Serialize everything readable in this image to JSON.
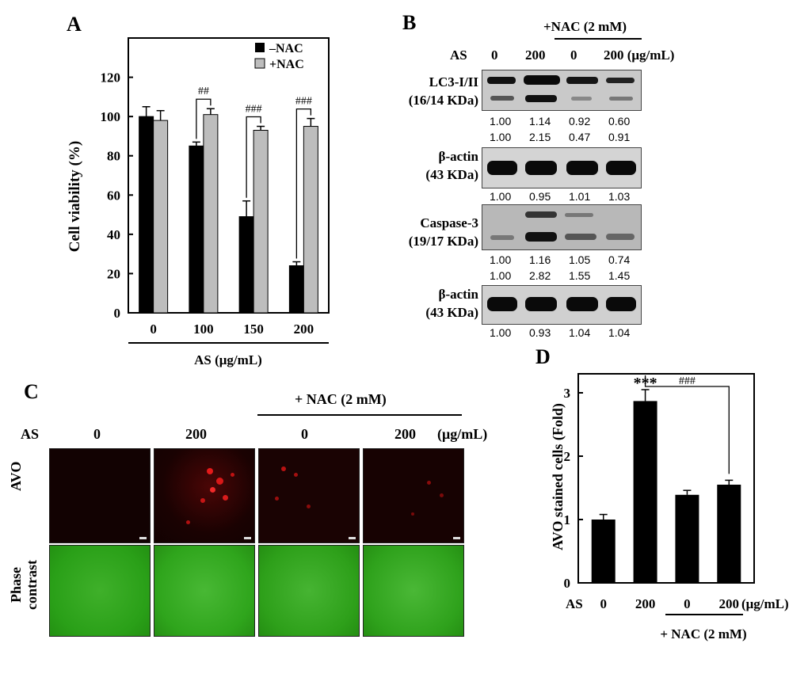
{
  "panel_a": {
    "letter": "A",
    "legend": {
      "minus": "–NAC",
      "plus": "+NAC"
    },
    "ylabel": "Cell viability  (%)",
    "xlabel": "AS (μg/mL)",
    "sig": [
      "##",
      "###",
      "###"
    ]
  },
  "panel_b": {
    "letter": "B",
    "nac_label": "+NAC (2 mM)",
    "as_label": "AS",
    "lanes": [
      "0",
      "200",
      "0",
      "200 (μg/mL)"
    ],
    "blots": [
      {
        "label1": "LC3-I/II",
        "label2": "(16/14 KDa)"
      },
      {
        "label1": "β-actin",
        "label2": "(43 KDa)"
      },
      {
        "label1": "Caspase-3",
        "label2": "(19/17 KDa)"
      },
      {
        "label1": "β-actin",
        "label2": "(43 KDa)"
      }
    ],
    "quant": [
      [
        "1.00",
        "1.14",
        "0.92",
        "0.60"
      ],
      [
        "1.00",
        "2.15",
        "0.47",
        "0.91"
      ],
      [
        "1.00",
        "0.95",
        "1.01",
        "1.03"
      ],
      [
        "1.00",
        "1.16",
        "1.05",
        "0.74"
      ],
      [
        "1.00",
        "2.82",
        "1.55",
        "1.45"
      ],
      [
        "1.00",
        "0.93",
        "1.04",
        "1.04"
      ]
    ]
  },
  "panel_c": {
    "letter": "C",
    "nac_label": "+ NAC  (2 mM)",
    "as_label": "AS",
    "cols": [
      "0",
      "200",
      "0",
      "200"
    ],
    "unit": "(μg/mL)",
    "row1": "AVO",
    "row2a": "Phase",
    "row2b": "contrast"
  },
  "panel_d": {
    "letter": "D",
    "ylabel": "AVO stained cells (Fold)",
    "as_label": "AS",
    "unit": "(μg/mL)",
    "nac_label": "+ NAC (2 mM)",
    "stars": "***",
    "sig": "###"
  },
  "chart_data": [
    {
      "type": "bar",
      "ylabel": "Cell viability  (%)",
      "xlabel": "AS (μg/mL)",
      "categories": [
        "0",
        "100",
        "150",
        "200"
      ],
      "series": [
        {
          "name": "–NAC",
          "values": [
            100,
            85,
            49,
            24
          ],
          "errors": [
            5,
            2,
            8,
            2
          ],
          "color": "#000000"
        },
        {
          "name": "+NAC",
          "values": [
            98,
            101,
            93,
            95
          ],
          "errors": [
            5,
            3,
            2,
            4
          ],
          "color": "#bdbdbd"
        }
      ],
      "ylim": [
        0,
        140
      ],
      "yticks": [
        0,
        20,
        40,
        60,
        80,
        100,
        120
      ],
      "legend": "top-right"
    },
    {
      "type": "bar",
      "ylabel": "AVO stained cells (Fold)",
      "categories": [
        "0",
        "200",
        "0",
        "200"
      ],
      "values": [
        1.0,
        2.87,
        1.39,
        1.55
      ],
      "errors": [
        0.08,
        0.18,
        0.07,
        0.07
      ],
      "ylim": [
        0,
        3.3
      ],
      "yticks": [
        0,
        1,
        2,
        3
      ],
      "color": "#000000"
    }
  ]
}
